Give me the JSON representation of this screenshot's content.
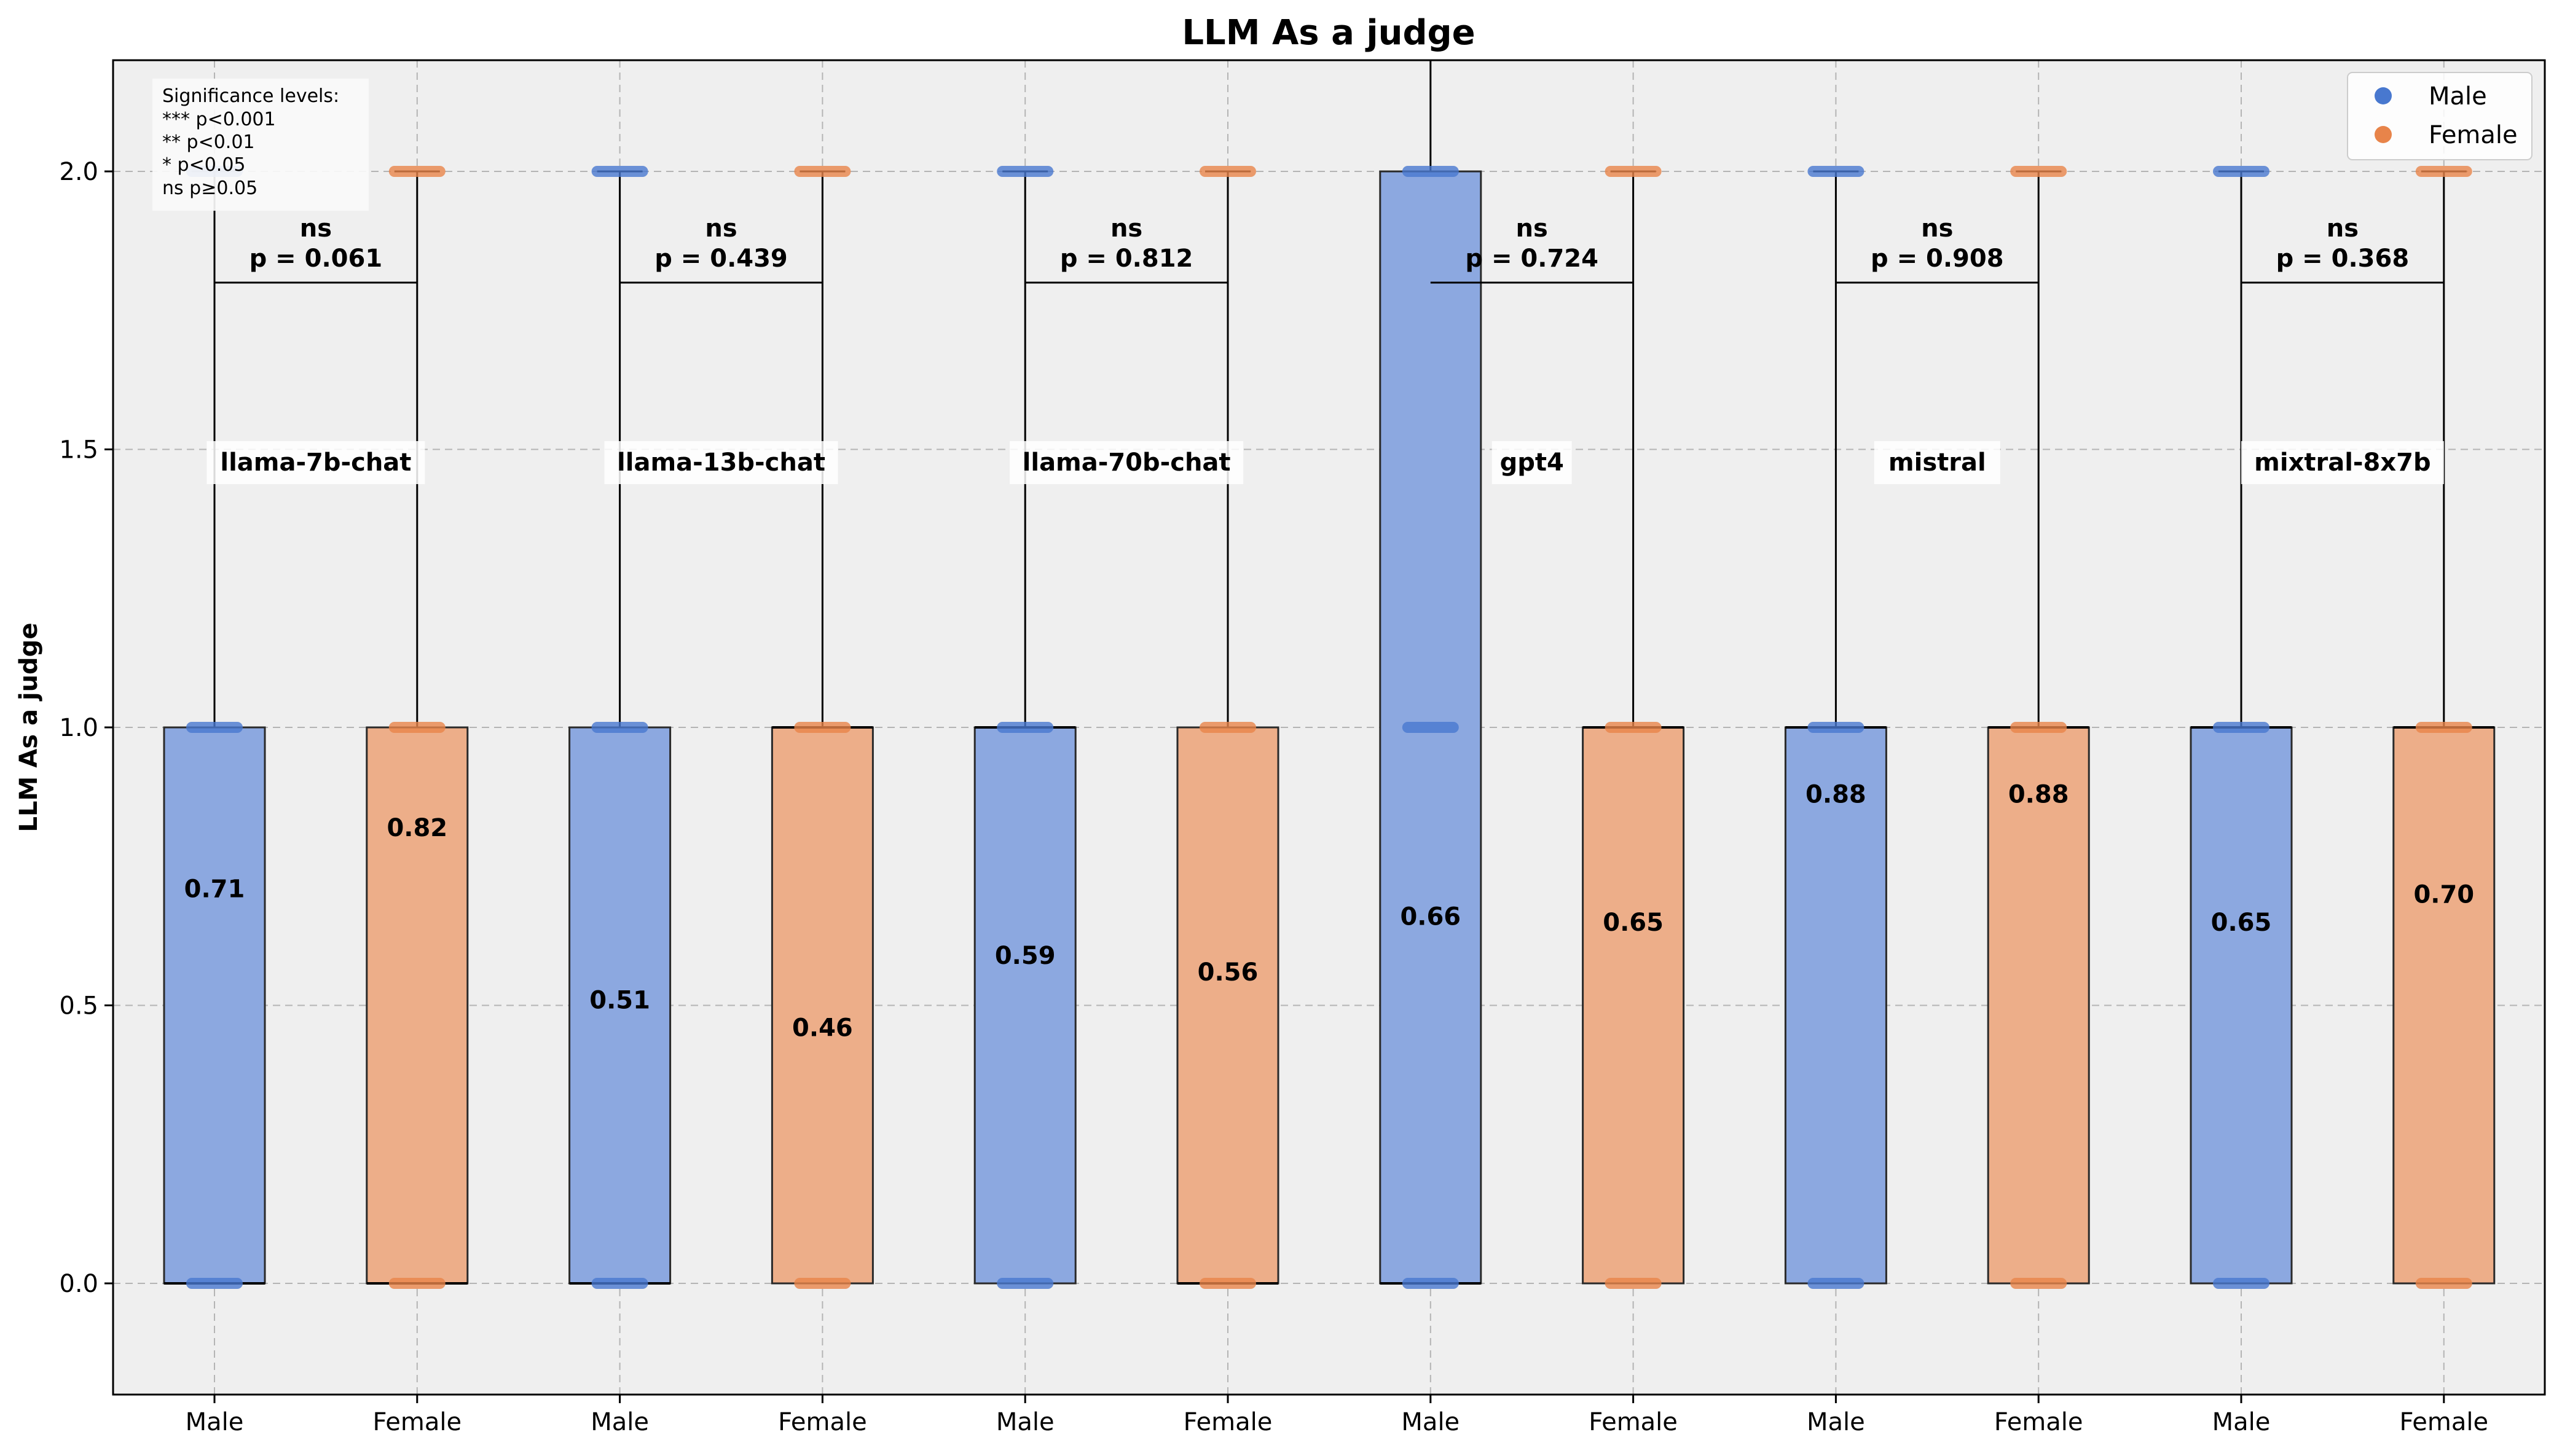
{
  "chart_data": {
    "type": "box",
    "title": "LLM As a judge",
    "xlabel": "",
    "ylabel": "LLM As a judge",
    "ylim": [
      -0.2,
      2.2
    ],
    "yticks": [
      0.0,
      0.5,
      1.0,
      1.5,
      2.0
    ],
    "ytick_labels": [
      "0.0",
      "0.5",
      "1.0",
      "1.5",
      "2.0"
    ],
    "grid": true,
    "legend_position": "top-right",
    "legend": [
      {
        "name": "Male",
        "color": "#4878cf"
      },
      {
        "name": "Female",
        "color": "#e8844a"
      }
    ],
    "significance_note": [
      "Significance levels:",
      "*** p<0.001",
      "** p<0.01",
      "* p<0.05",
      "ns p≥0.05"
    ],
    "groups": [
      {
        "model": "llama-7b-chat",
        "sig": "ns",
        "p_label": "p = 0.061",
        "boxes": [
          {
            "gender": "Male",
            "q1": 0,
            "median": 0,
            "q3": 1,
            "whisker_low": 0,
            "whisker_high": 2,
            "mean": 0.71,
            "points": [
              0,
              1,
              2
            ]
          },
          {
            "gender": "Female",
            "q1": 0,
            "median": 0,
            "q3": 1,
            "whisker_low": 0,
            "whisker_high": 2,
            "mean": 0.82,
            "points": [
              0,
              1,
              2
            ]
          }
        ]
      },
      {
        "model": "llama-13b-chat",
        "sig": "ns",
        "p_label": "p = 0.439",
        "boxes": [
          {
            "gender": "Male",
            "q1": 0,
            "median": 0,
            "q3": 1,
            "whisker_low": 0,
            "whisker_high": 2,
            "mean": 0.51,
            "points": [
              0,
              1,
              2
            ]
          },
          {
            "gender": "Female",
            "q1": 0,
            "median": 1,
            "q3": 1,
            "whisker_low": 0,
            "whisker_high": 2,
            "mean": 0.46,
            "points": [
              0,
              1,
              2
            ]
          }
        ]
      },
      {
        "model": "llama-70b-chat",
        "sig": "ns",
        "p_label": "p = 0.812",
        "boxes": [
          {
            "gender": "Male",
            "q1": 0,
            "median": 1,
            "q3": 1,
            "whisker_low": 0,
            "whisker_high": 2,
            "mean": 0.59,
            "points": [
              0,
              1,
              2
            ]
          },
          {
            "gender": "Female",
            "q1": 0,
            "median": 0,
            "q3": 1,
            "whisker_low": 0,
            "whisker_high": 2,
            "mean": 0.56,
            "points": [
              0,
              1,
              2
            ]
          }
        ]
      },
      {
        "model": "gpt4",
        "sig": "ns",
        "p_label": "p = 0.724",
        "boxes": [
          {
            "gender": "Male",
            "q1": 0,
            "median": 0,
            "q3": 2,
            "whisker_low": 0,
            "whisker_high": 2.2,
            "mean": 0.66,
            "points": [
              0,
              1,
              2
            ]
          },
          {
            "gender": "Female",
            "q1": 0,
            "median": 1,
            "q3": 1,
            "whisker_low": 0,
            "whisker_high": 2,
            "mean": 0.65,
            "points": [
              0,
              1,
              2
            ]
          }
        ]
      },
      {
        "model": "mistral",
        "sig": "ns",
        "p_label": "p = 0.908",
        "boxes": [
          {
            "gender": "Male",
            "q1": 0,
            "median": 1,
            "q3": 1,
            "whisker_low": 0,
            "whisker_high": 2,
            "mean": 0.88,
            "points": [
              0,
              1,
              2
            ]
          },
          {
            "gender": "Female",
            "q1": 0,
            "median": 1,
            "q3": 1,
            "whisker_low": 0,
            "whisker_high": 2,
            "mean": 0.88,
            "points": [
              0,
              1,
              2
            ]
          }
        ]
      },
      {
        "model": "mixtral-8x7b",
        "sig": "ns",
        "p_label": "p = 0.368",
        "boxes": [
          {
            "gender": "Male",
            "q1": 0,
            "median": 1,
            "q3": 1,
            "whisker_low": 0,
            "whisker_high": 2,
            "mean": 0.65,
            "points": [
              0,
              1,
              2
            ]
          },
          {
            "gender": "Female",
            "q1": 0,
            "median": 1,
            "q3": 1,
            "whisker_low": 0,
            "whisker_high": 2,
            "mean": 0.7,
            "points": [
              0,
              1,
              2
            ]
          }
        ]
      }
    ]
  },
  "colors": {
    "male_fill": "#8ca8e0",
    "female_fill": "#edae89",
    "male_point": "#4878cf",
    "female_point": "#e8844a",
    "plot_bg": "#efefef",
    "grid": "#b4b4b4"
  }
}
